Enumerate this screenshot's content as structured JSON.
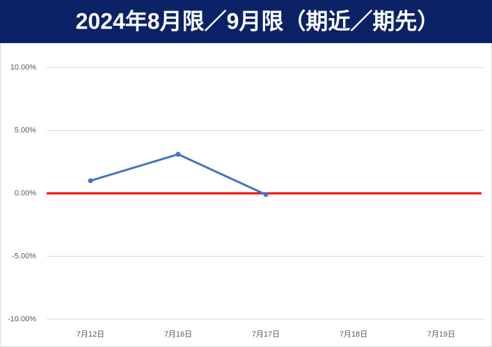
{
  "chart_data": {
    "type": "line",
    "title": "2024年8月限／9月限（期近／期先）",
    "categories": [
      "7月12日",
      "7月16日",
      "7月17日",
      "7月18日",
      "7月19日"
    ],
    "series": [
      {
        "color": "#4472c4",
        "values": [
          1.0,
          3.1,
          -0.1,
          null,
          null
        ]
      }
    ],
    "ylim": [
      -10,
      10
    ],
    "yticks": [
      {
        "value": -10,
        "label": "-10.00%"
      },
      {
        "value": -5,
        "label": "-5.00%"
      },
      {
        "value": 0,
        "label": "0.00%"
      },
      {
        "value": 5,
        "label": "5.00%"
      },
      {
        "value": 10,
        "label": "10.00%"
      }
    ],
    "grid": true,
    "zero_line_color": "#ff0000"
  }
}
